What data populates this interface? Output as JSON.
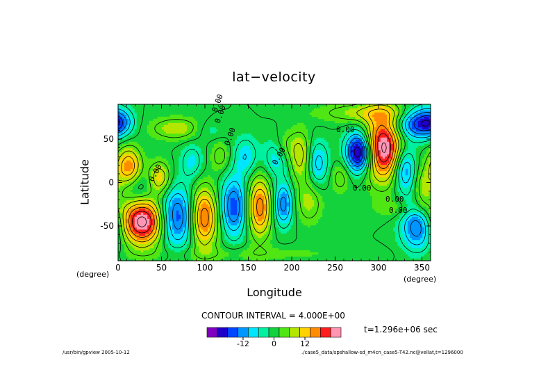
{
  "chart_data": {
    "type": "heatmap",
    "title": "lat−velocity",
    "xlabel": "Longitude",
    "ylabel": "Latitude",
    "x_unit": "(degree)",
    "y_unit": "(degree)",
    "xlim": [
      0,
      360
    ],
    "ylim": [
      -90,
      90
    ],
    "xticks": [
      0,
      50,
      100,
      150,
      200,
      250,
      300,
      350
    ],
    "yticks": [
      -50,
      0,
      50
    ],
    "contour_labels": [
      "0.00",
      "0.00",
      "0.00",
      "0.00",
      "0.00",
      "0.00",
      "0.00",
      "0.00",
      "0.00"
    ],
    "contour_interval_text": "CONTOUR INTERVAL = 4.000E+00",
    "colorbar": {
      "colors": [
        "#7f00c0",
        "#1e00c8",
        "#0046ff",
        "#0096ff",
        "#00e6ff",
        "#00f0a0",
        "#14d23c",
        "#50e614",
        "#b4e600",
        "#ffd200",
        "#ff8c00",
        "#ff1e1e",
        "#ff96b4"
      ],
      "levels": [
        -24,
        -20,
        -16,
        -12,
        -8,
        -4,
        0,
        4,
        8,
        12,
        16,
        20,
        24
      ],
      "tick_labels": [
        "-12",
        "0",
        "12"
      ],
      "tick_values": [
        -12,
        0,
        12
      ]
    },
    "features": [
      {
        "lon": 0,
        "lat": 70,
        "value": -14,
        "rx": 12,
        "ry": 12
      },
      {
        "lon": 12,
        "lat": 18,
        "value": 16,
        "rx": 10,
        "ry": 16
      },
      {
        "lon": 22,
        "lat": -8,
        "value": -6,
        "rx": 12,
        "ry": 13
      },
      {
        "lon": 28,
        "lat": -45,
        "value": 26,
        "rx": 19,
        "ry": 19
      },
      {
        "lon": 48,
        "lat": 5,
        "value": 12,
        "rx": 9,
        "ry": 13
      },
      {
        "lon": 68,
        "lat": -40,
        "value": -18,
        "rx": 15,
        "ry": 24
      },
      {
        "lon": 68,
        "lat": 62,
        "value": 8,
        "rx": 22,
        "ry": 9
      },
      {
        "lon": 98,
        "lat": -40,
        "value": 20,
        "rx": 12,
        "ry": 24
      },
      {
        "lon": 85,
        "lat": 24,
        "value": -7,
        "rx": 9,
        "ry": 14
      },
      {
        "lon": 105,
        "lat": 60,
        "value": -4,
        "rx": 13,
        "ry": 8
      },
      {
        "lon": 118,
        "lat": 30,
        "value": 6,
        "rx": 8,
        "ry": 12
      },
      {
        "lon": 133,
        "lat": -28,
        "value": -16,
        "rx": 11,
        "ry": 24
      },
      {
        "lon": 147,
        "lat": 30,
        "value": -8,
        "rx": 10,
        "ry": 16
      },
      {
        "lon": 163,
        "lat": -28,
        "value": 18,
        "rx": 10,
        "ry": 24
      },
      {
        "lon": 182,
        "lat": 28,
        "value": -8,
        "rx": 10,
        "ry": 16
      },
      {
        "lon": 190,
        "lat": -25,
        "value": -14,
        "rx": 8,
        "ry": 18
      },
      {
        "lon": 192,
        "lat": 42,
        "value": 5,
        "rx": 9,
        "ry": 12
      },
      {
        "lon": 210,
        "lat": 30,
        "value": 10,
        "rx": 9,
        "ry": 20
      },
      {
        "lon": 220,
        "lat": -22,
        "value": 7,
        "rx": 11,
        "ry": 18
      },
      {
        "lon": 230,
        "lat": 22,
        "value": -10,
        "rx": 9,
        "ry": 18
      },
      {
        "lon": 256,
        "lat": 6,
        "value": 6,
        "rx": 8,
        "ry": 13
      },
      {
        "lon": 278,
        "lat": 35,
        "value": -26,
        "rx": 11,
        "ry": 16
      },
      {
        "lon": 290,
        "lat": 80,
        "value": 8,
        "rx": 40,
        "ry": 8
      },
      {
        "lon": 305,
        "lat": 40,
        "value": 26,
        "rx": 15,
        "ry": 26
      },
      {
        "lon": 330,
        "lat": 15,
        "value": -14,
        "rx": 9,
        "ry": 18
      },
      {
        "lon": 340,
        "lat": 68,
        "value": -14,
        "rx": 16,
        "ry": 13
      },
      {
        "lon": 346,
        "lat": -50,
        "value": -16,
        "rx": 14,
        "ry": 20
      },
      {
        "lon": 352,
        "lat": -10,
        "value": 8,
        "rx": 8,
        "ry": 18
      },
      {
        "lon": 325,
        "lat": -30,
        "value": 4,
        "rx": 22,
        "ry": 8
      },
      {
        "lon": 150,
        "lat": -82,
        "value": 3,
        "rx": 90,
        "ry": 6
      }
    ]
  },
  "time_label": "t=1.296e+06 sec",
  "footer": {
    "left": "/usr/bin/gpview  2005-10-12",
    "right": "./case5_data/spshallow-sd_m4cn_case5-T42.nc@vellat,t=1296000"
  }
}
